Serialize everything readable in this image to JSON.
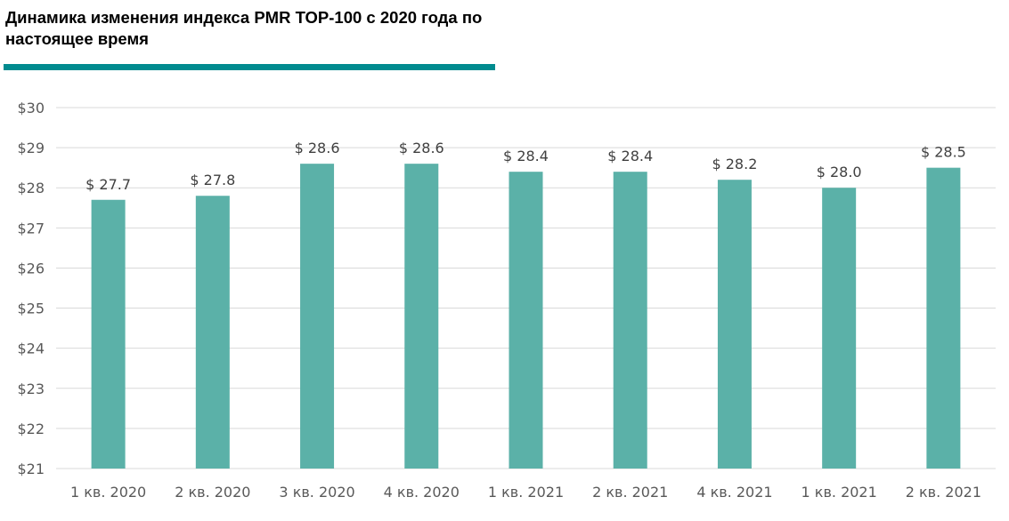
{
  "chart_data": {
    "type": "bar",
    "title": "Динамика изменения индекса PMR TOP-100 с 2020 года по настоящее время",
    "categories": [
      "1 кв. 2020",
      "2 кв. 2020",
      "3 кв. 2020",
      "4 кв. 2020",
      "1 кв. 2021",
      "2 кв. 2021",
      "4 кв. 2021",
      "1 кв. 2021",
      "2 кв. 2021"
    ],
    "values": [
      27.7,
      27.8,
      28.6,
      28.6,
      28.4,
      28.4,
      28.2,
      28.0,
      28.5
    ],
    "data_labels": [
      "$ 27.7",
      "$ 27.8",
      "$ 28.6",
      "$ 28.6",
      "$ 28.4",
      "$ 28.4",
      "$ 28.2",
      "$ 28.0",
      "$ 28.5"
    ],
    "ylim": [
      21,
      30
    ],
    "yticks": [
      21,
      22,
      23,
      24,
      25,
      26,
      27,
      28,
      29,
      30
    ],
    "ytick_labels": [
      "$21",
      "$22",
      "$23",
      "$24",
      "$25",
      "$26",
      "$27",
      "$28",
      "$29",
      "$30"
    ],
    "xlabel": "",
    "ylabel": "",
    "grid": true,
    "legend": "none",
    "colors": {
      "bar": "#5bb1a8",
      "title_rule": "#008b8f",
      "grid": "#d9d9d9"
    }
  }
}
